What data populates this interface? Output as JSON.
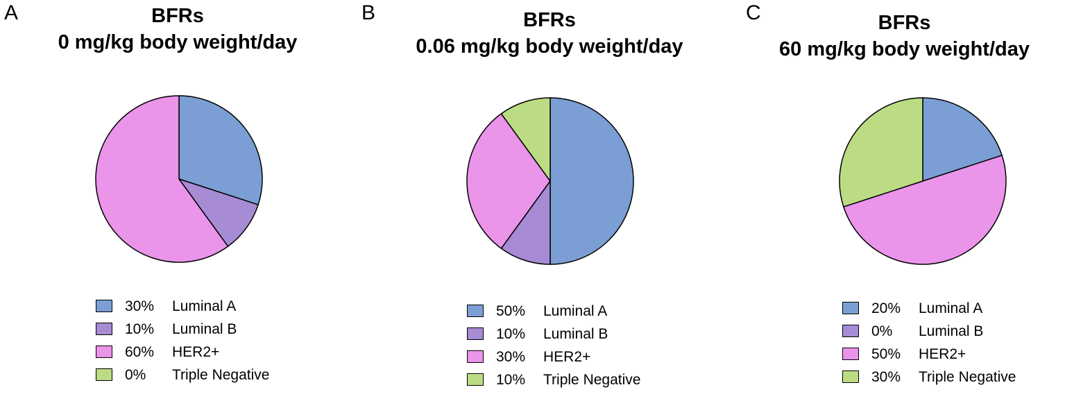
{
  "chart_data": [
    {
      "type": "pie",
      "panel": "A",
      "title": "BFRs",
      "subtitle": "0 mg/kg body weight/day",
      "slices": [
        {
          "label": "Luminal A",
          "pct_label": "30%",
          "value": 30,
          "color": "#7B9FD4"
        },
        {
          "label": "Luminal B",
          "pct_label": "10%",
          "value": 10,
          "color": "#A78BD4"
        },
        {
          "label": "HER2+",
          "pct_label": "60%",
          "value": 60,
          "color": "#EA94EA"
        },
        {
          "label": "Triple Negative",
          "pct_label": "0%",
          "value": 0,
          "color": "#BCDC84"
        }
      ]
    },
    {
      "type": "pie",
      "panel": "B",
      "title": "BFRs",
      "subtitle": "0.06 mg/kg body weight/day",
      "slices": [
        {
          "label": "Luminal A",
          "pct_label": "50%",
          "value": 50,
          "color": "#7B9FD4"
        },
        {
          "label": "Luminal B",
          "pct_label": "10%",
          "value": 10,
          "color": "#A78BD4"
        },
        {
          "label": "HER2+",
          "pct_label": "30%",
          "value": 30,
          "color": "#EA94EA"
        },
        {
          "label": "Triple Negative",
          "pct_label": "10%",
          "value": 10,
          "color": "#BCDC84"
        }
      ]
    },
    {
      "type": "pie",
      "panel": "C",
      "title": "BFRs",
      "subtitle": "60 mg/kg body weight/day",
      "slices": [
        {
          "label": "Luminal A",
          "pct_label": "20%",
          "value": 20,
          "color": "#7B9FD4"
        },
        {
          "label": "Luminal B",
          "pct_label": "0%",
          "value": 0,
          "color": "#A78BD4"
        },
        {
          "label": "HER2+",
          "pct_label": "50%",
          "value": 50,
          "color": "#EA94EA"
        },
        {
          "label": "Triple Negative",
          "pct_label": "30%",
          "value": 30,
          "color": "#BCDC84"
        }
      ]
    }
  ]
}
